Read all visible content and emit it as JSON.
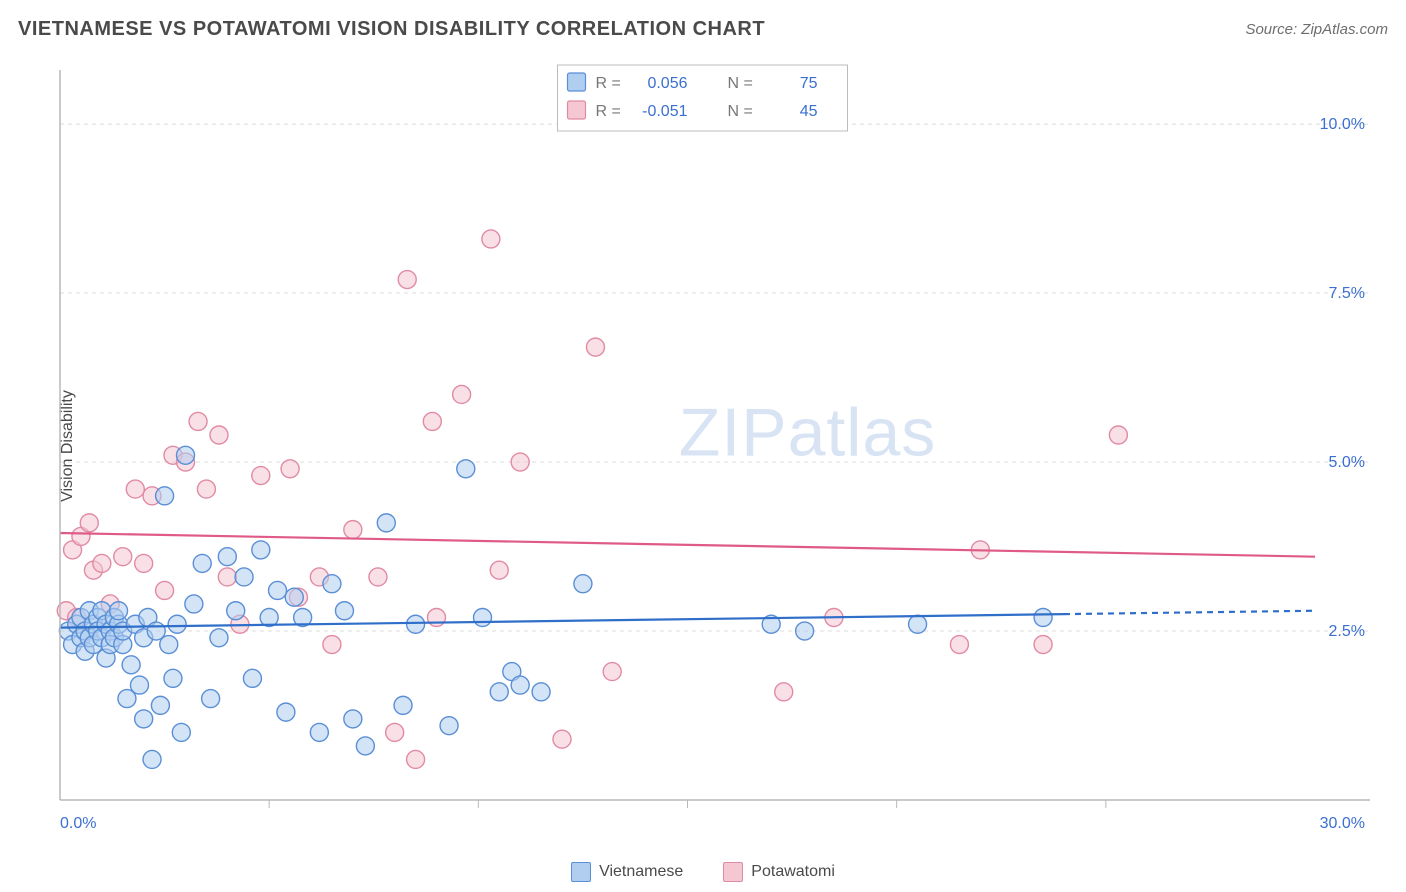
{
  "title": "VIETNAMESE VS POTAWATOMI VISION DISABILITY CORRELATION CHART",
  "source_label": "Source: ZipAtlas.com",
  "ylabel": "Vision Disability",
  "watermark": "ZIPatlas",
  "chart": {
    "type": "scatter",
    "xlim": [
      0,
      30
    ],
    "ylim": [
      0,
      10.8
    ],
    "xticks": [
      0,
      5,
      10,
      15,
      20,
      25,
      30
    ],
    "yticks": [
      2.5,
      5.0,
      7.5,
      10.0
    ],
    "xlabel_0": "0.0%",
    "xlabel_30": "30.0%",
    "ytick_labels": [
      "2.5%",
      "5.0%",
      "7.5%",
      "10.0%"
    ],
    "background_color": "#ffffff",
    "grid_color": "#dcdcdc",
    "axis_color": "#b8b8b8",
    "tick_label_color": "#3b6fd1",
    "ylabel_color": "#4a4a4a",
    "marker_radius": 9,
    "marker_stroke_width": 1.4,
    "trend_width": 2.2,
    "dashed_extension": true
  },
  "series": {
    "vietnamese": {
      "label": "Vietnamese",
      "fill": "#b0cef0",
      "stroke": "#5a8fd6",
      "trend_color": "#2f6fc9",
      "trend": {
        "x1": 0,
        "y1": 2.55,
        "x2": 24,
        "y2": 2.75,
        "x_ext": 30,
        "y_ext": 2.8
      },
      "points": [
        [
          0.2,
          2.5
        ],
        [
          0.3,
          2.3
        ],
        [
          0.4,
          2.6
        ],
        [
          0.5,
          2.4
        ],
        [
          0.5,
          2.7
        ],
        [
          0.6,
          2.2
        ],
        [
          0.6,
          2.5
        ],
        [
          0.7,
          2.8
        ],
        [
          0.7,
          2.4
        ],
        [
          0.8,
          2.6
        ],
        [
          0.8,
          2.3
        ],
        [
          0.9,
          2.7
        ],
        [
          0.9,
          2.5
        ],
        [
          1.0,
          2.4
        ],
        [
          1.0,
          2.8
        ],
        [
          1.1,
          2.1
        ],
        [
          1.1,
          2.6
        ],
        [
          1.2,
          2.5
        ],
        [
          1.2,
          2.3
        ],
        [
          1.3,
          2.7
        ],
        [
          1.3,
          2.4
        ],
        [
          1.4,
          2.6
        ],
        [
          1.4,
          2.8
        ],
        [
          1.5,
          2.3
        ],
        [
          1.5,
          2.5
        ],
        [
          1.6,
          1.5
        ],
        [
          1.7,
          2.0
        ],
        [
          1.8,
          2.6
        ],
        [
          1.9,
          1.7
        ],
        [
          2.0,
          2.4
        ],
        [
          2.0,
          1.2
        ],
        [
          2.1,
          2.7
        ],
        [
          2.2,
          0.6
        ],
        [
          2.3,
          2.5
        ],
        [
          2.4,
          1.4
        ],
        [
          2.5,
          4.5
        ],
        [
          2.6,
          2.3
        ],
        [
          2.7,
          1.8
        ],
        [
          2.8,
          2.6
        ],
        [
          2.9,
          1.0
        ],
        [
          3.0,
          5.1
        ],
        [
          3.2,
          2.9
        ],
        [
          3.4,
          3.5
        ],
        [
          3.6,
          1.5
        ],
        [
          3.8,
          2.4
        ],
        [
          4.0,
          3.6
        ],
        [
          4.2,
          2.8
        ],
        [
          4.4,
          3.3
        ],
        [
          4.6,
          1.8
        ],
        [
          4.8,
          3.7
        ],
        [
          5.0,
          2.7
        ],
        [
          5.2,
          3.1
        ],
        [
          5.4,
          1.3
        ],
        [
          5.6,
          3.0
        ],
        [
          5.8,
          2.7
        ],
        [
          6.2,
          1.0
        ],
        [
          6.5,
          3.2
        ],
        [
          6.8,
          2.8
        ],
        [
          7.0,
          1.2
        ],
        [
          7.3,
          0.8
        ],
        [
          7.8,
          4.1
        ],
        [
          8.2,
          1.4
        ],
        [
          8.5,
          2.6
        ],
        [
          9.3,
          1.1
        ],
        [
          9.7,
          4.9
        ],
        [
          10.1,
          2.7
        ],
        [
          10.5,
          1.6
        ],
        [
          10.8,
          1.9
        ],
        [
          11.0,
          1.7
        ],
        [
          11.5,
          1.6
        ],
        [
          12.5,
          3.2
        ],
        [
          17.0,
          2.6
        ],
        [
          17.8,
          2.5
        ],
        [
          20.5,
          2.6
        ],
        [
          23.5,
          2.7
        ]
      ]
    },
    "potawatomi": {
      "label": "Potawatomi",
      "fill": "#f4c7d3",
      "stroke": "#e18aa3",
      "trend_color": "#e05a87",
      "trend": {
        "x1": 0,
        "y1": 3.95,
        "x2": 30,
        "y2": 3.6
      },
      "points": [
        [
          0.15,
          2.8
        ],
        [
          0.3,
          3.7
        ],
        [
          0.4,
          2.7
        ],
        [
          0.5,
          3.9
        ],
        [
          0.7,
          4.1
        ],
        [
          0.8,
          3.4
        ],
        [
          1.0,
          3.5
        ],
        [
          1.2,
          2.9
        ],
        [
          1.5,
          3.6
        ],
        [
          1.8,
          4.6
        ],
        [
          2.0,
          3.5
        ],
        [
          2.2,
          4.5
        ],
        [
          2.5,
          3.1
        ],
        [
          2.7,
          5.1
        ],
        [
          3.0,
          5.0
        ],
        [
          3.3,
          5.6
        ],
        [
          3.5,
          4.6
        ],
        [
          3.8,
          5.4
        ],
        [
          4.0,
          3.3
        ],
        [
          4.3,
          2.6
        ],
        [
          4.8,
          4.8
        ],
        [
          5.5,
          4.9
        ],
        [
          5.7,
          3.0
        ],
        [
          6.2,
          3.3
        ],
        [
          6.5,
          2.3
        ],
        [
          7.0,
          4.0
        ],
        [
          7.6,
          3.3
        ],
        [
          8.0,
          1.0
        ],
        [
          8.3,
          7.7
        ],
        [
          8.5,
          0.6
        ],
        [
          8.9,
          5.6
        ],
        [
          9.0,
          2.7
        ],
        [
          9.6,
          6.0
        ],
        [
          10.3,
          8.3
        ],
        [
          10.5,
          3.4
        ],
        [
          11.0,
          5.0
        ],
        [
          12.0,
          0.9
        ],
        [
          12.8,
          6.7
        ],
        [
          13.2,
          1.9
        ],
        [
          17.3,
          1.6
        ],
        [
          18.5,
          2.7
        ],
        [
          21.5,
          2.3
        ],
        [
          22.0,
          3.7
        ],
        [
          23.5,
          2.3
        ],
        [
          25.3,
          5.4
        ]
      ]
    }
  },
  "stats_legend": {
    "r_label": "R  =",
    "n_label": "N  =",
    "rows": [
      {
        "swatch_fill": "#b0cef0",
        "swatch_stroke": "#5a8fd6",
        "r": "0.056",
        "n": "75"
      },
      {
        "swatch_fill": "#f4c7d3",
        "swatch_stroke": "#e18aa3",
        "r": "-0.051",
        "n": "45"
      }
    ],
    "border_color": "#bcbcbc",
    "text_color": "#777777",
    "value_color": "#3b6fd1"
  }
}
